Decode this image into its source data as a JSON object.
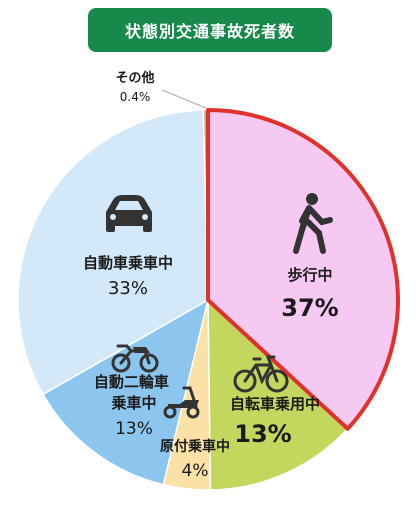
{
  "chart_data": {
    "type": "pie",
    "title": "状態別交通事故死者数",
    "start_angle_deg": 0,
    "direction": "clockwise",
    "slices": [
      {
        "key": "walk",
        "label": "歩行中",
        "pct_label": "37%",
        "value": 37,
        "color": "#f6c9f3",
        "icon": "pedestrian-icon",
        "highlight": true
      },
      {
        "key": "bike",
        "label": "自転車乗用中",
        "pct_label": "13%",
        "value": 13,
        "color": "#c3d75f",
        "icon": "bicycle-icon"
      },
      {
        "key": "moped",
        "label": "原付乗車中",
        "pct_label": "4%",
        "value": 4,
        "color": "#fbe1a6",
        "icon": "scooter-icon"
      },
      {
        "key": "moto",
        "label": "自動二輪車乗車中",
        "pct_label": "13%",
        "value": 13,
        "color": "#8cc6ef",
        "icon": "motorcycle-icon"
      },
      {
        "key": "car",
        "label": "自動車乗車中",
        "pct_label": "33%",
        "value": 33,
        "color": "#d3e9f9",
        "icon": "car-icon"
      },
      {
        "key": "other",
        "label": "その他",
        "pct_label": "0.4%",
        "value": 0.4,
        "color": "#a9c472",
        "icon": ""
      }
    ],
    "highlight_color": "#e0322b",
    "legend": "none"
  }
}
